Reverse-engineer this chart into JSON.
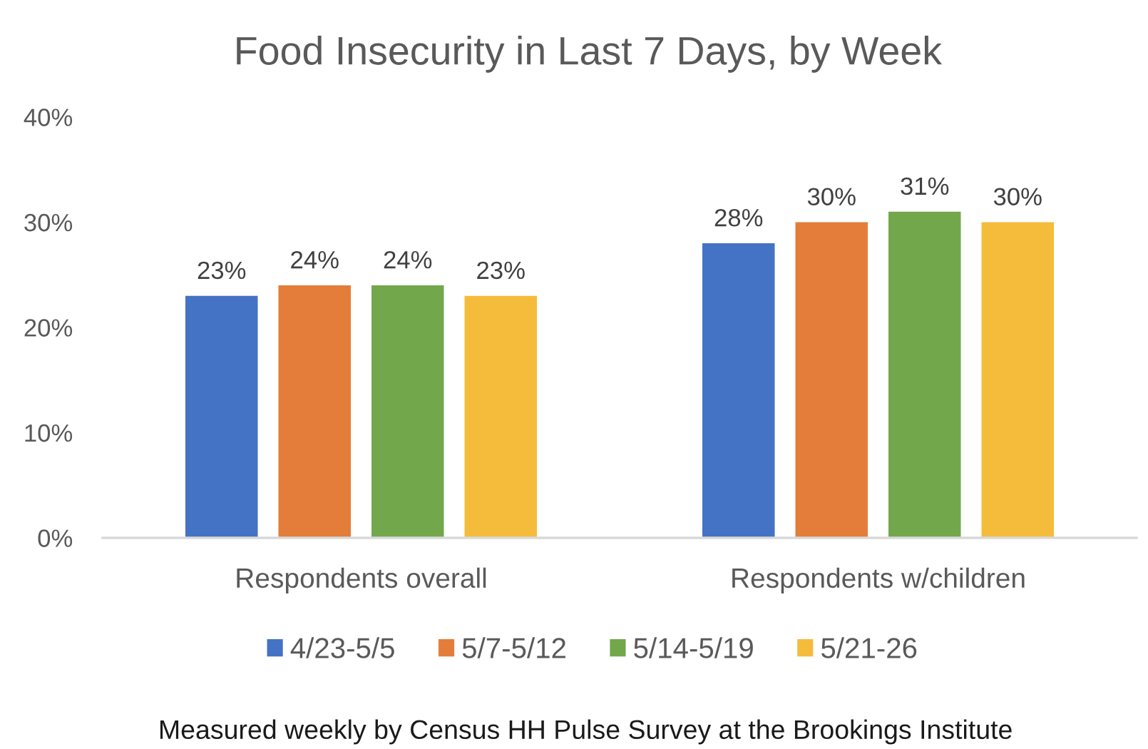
{
  "chart_data": {
    "type": "bar",
    "title": "Food Insecurity in Last 7 Days, by Week",
    "categories": [
      "Respondents overall",
      "Respondents w/children"
    ],
    "series": [
      {
        "name": "4/23-5/5",
        "color": "#4472c4",
        "values": [
          23,
          28
        ],
        "value_labels": [
          "23%",
          "28%"
        ]
      },
      {
        "name": "5/7-5/12",
        "color": "#e47d39",
        "values": [
          24,
          30
        ],
        "value_labels": [
          "24%",
          "30%"
        ]
      },
      {
        "name": "5/14-5/19",
        "color": "#73a74b",
        "values": [
          24,
          31
        ],
        "value_labels": [
          "24%",
          "31%"
        ]
      },
      {
        "name": "5/21-26",
        "color": "#f5bb3a",
        "values": [
          23,
          30
        ],
        "value_labels": [
          "23%",
          "30%"
        ]
      }
    ],
    "ylim": [
      0,
      40
    ],
    "yticks": [
      {
        "value": 0,
        "label": "0%"
      },
      {
        "value": 10,
        "label": "10%"
      },
      {
        "value": 20,
        "label": "20%"
      },
      {
        "value": 30,
        "label": "30%"
      },
      {
        "value": 40,
        "label": "40%"
      }
    ],
    "grid": false,
    "legend": "bottom",
    "annotations": [
      "Measured weekly by Census HH Pulse Survey at the Brookings Institute"
    ]
  }
}
